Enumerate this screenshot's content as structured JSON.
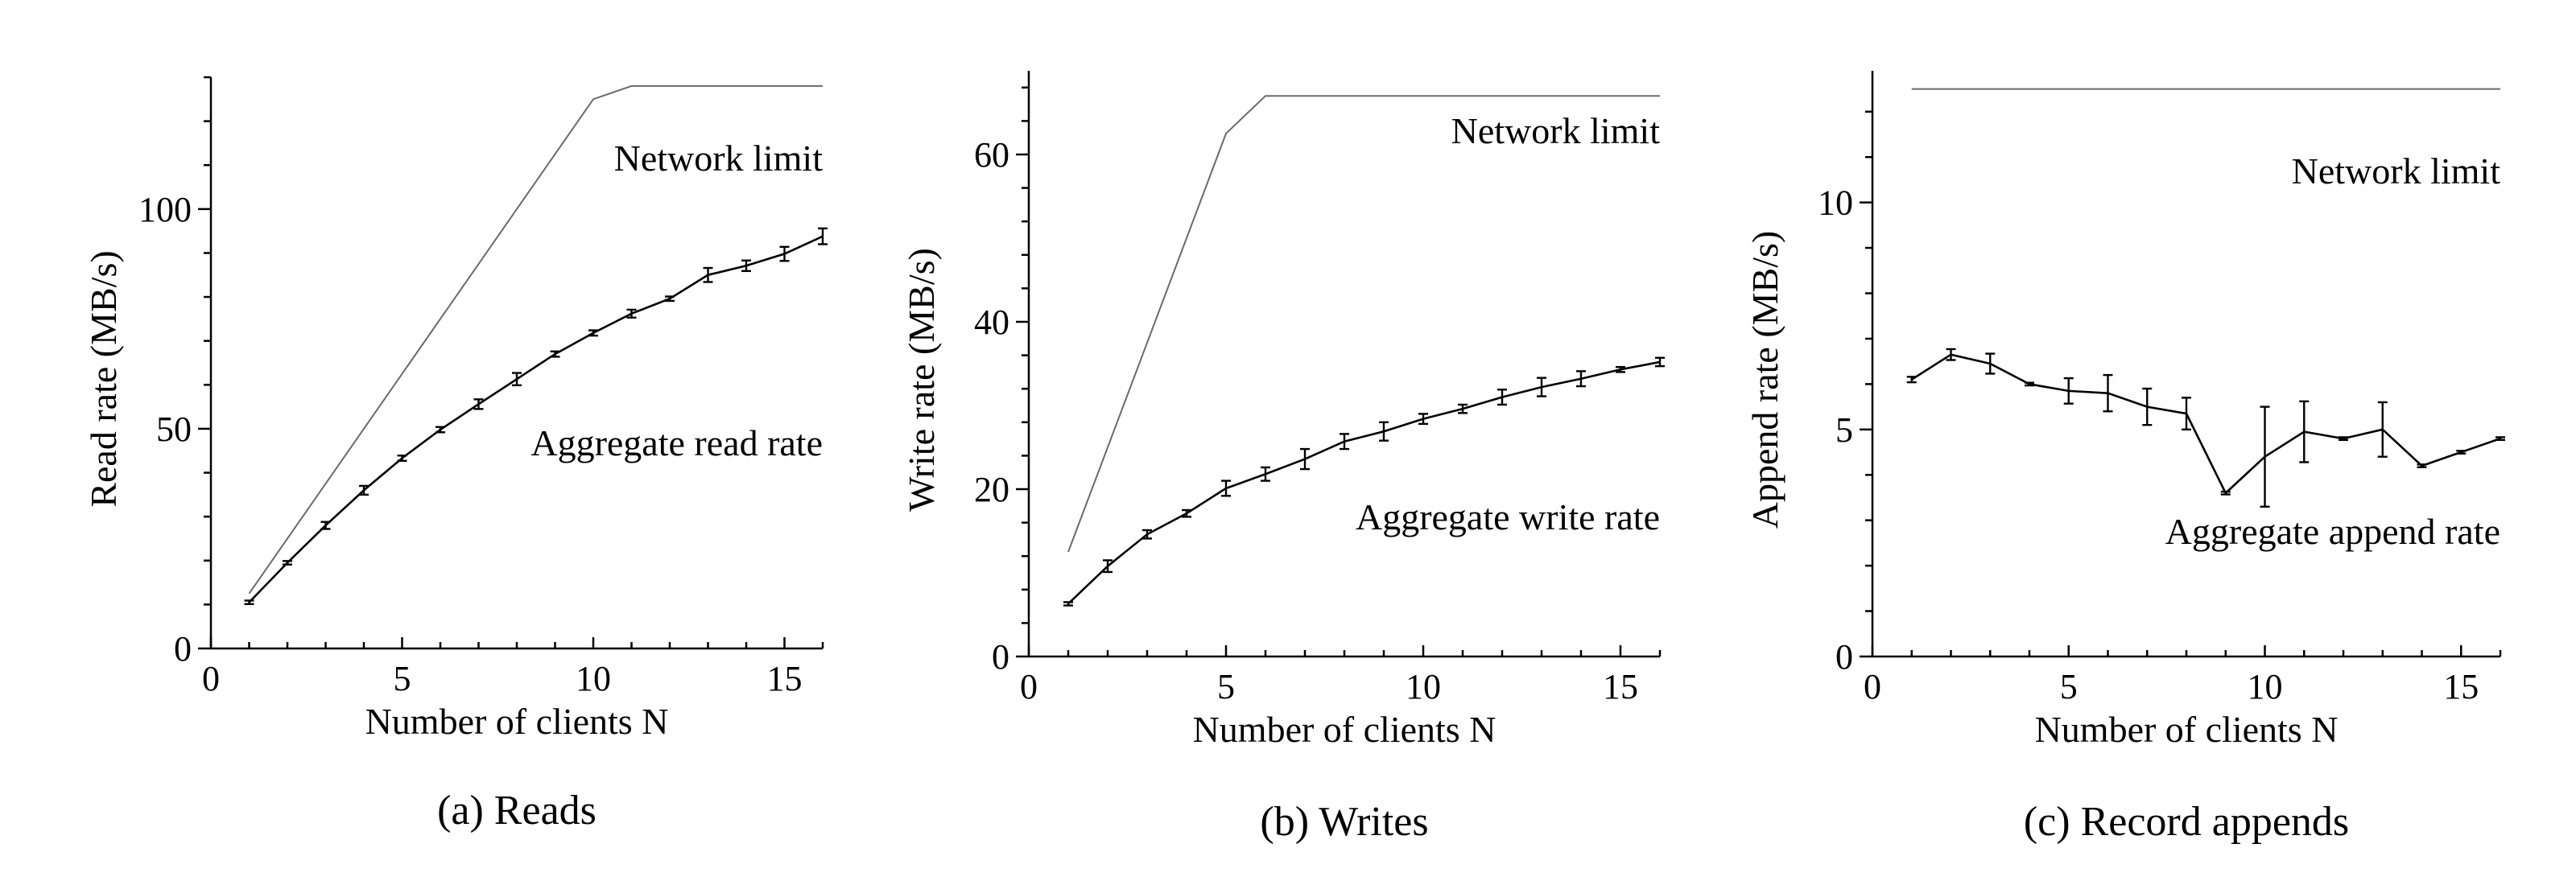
{
  "chart_data": [
    {
      "type": "line",
      "caption": "(a)  Reads",
      "xlabel": "Number of clients N",
      "ylabel": "Read rate (MB/s)",
      "xlim": [
        0,
        16
      ],
      "ylim": [
        0,
        130
      ],
      "xticks": [
        0,
        5,
        10,
        15
      ],
      "yticks": [
        0,
        50,
        100
      ],
      "series": [
        {
          "name": "Aggregate read rate",
          "role": "data",
          "x": [
            1,
            2,
            3,
            4,
            5,
            6,
            7,
            8,
            9,
            10,
            11,
            12,
            13,
            14,
            15,
            16
          ],
          "y": [
            10.5,
            19.5,
            28,
            36,
            43.3,
            49.8,
            55.6,
            61.3,
            67,
            71.8,
            76.2,
            79.6,
            85,
            87.1,
            89.8,
            93.8
          ],
          "err": [
            0.4,
            0.4,
            0.8,
            1,
            0.6,
            0.6,
            1.1,
            1.4,
            0.6,
            0.6,
            0.9,
            0.5,
            1.6,
            1.2,
            1.6,
            1.8
          ]
        },
        {
          "name": "Network limit",
          "role": "limit",
          "x": [
            1,
            10,
            11,
            16
          ],
          "y": [
            12.5,
            125,
            128,
            128
          ]
        }
      ]
    },
    {
      "type": "line",
      "caption": "(b)  Writes",
      "xlabel": "Number of clients N",
      "ylabel": "Write rate (MB/s)",
      "xlim": [
        0,
        16
      ],
      "ylim": [
        0,
        70
      ],
      "xticks": [
        0,
        5,
        10,
        15
      ],
      "yticks": [
        0,
        20,
        40,
        60
      ],
      "series": [
        {
          "name": "Aggregate write rate",
          "role": "data",
          "x": [
            1,
            2,
            3,
            4,
            5,
            6,
            7,
            8,
            9,
            10,
            11,
            12,
            13,
            14,
            15,
            16
          ],
          "y": [
            6.3,
            10.8,
            14.6,
            17.1,
            20.1,
            21.8,
            23.6,
            25.7,
            26.9,
            28.4,
            29.6,
            31,
            32.2,
            33.2,
            34.3,
            35.2
          ],
          "err": [
            0.2,
            0.7,
            0.5,
            0.4,
            0.9,
            0.8,
            1.2,
            0.9,
            1.1,
            0.6,
            0.5,
            0.9,
            1.1,
            0.9,
            0.3,
            0.5
          ]
        },
        {
          "name": "Network limit",
          "role": "limit",
          "x": [
            1,
            5,
            6,
            16
          ],
          "y": [
            12.5,
            62.5,
            67,
            67
          ]
        }
      ]
    },
    {
      "type": "line",
      "caption": "(c)  Record appends",
      "xlabel": "Number of clients N",
      "ylabel": "Append rate (MB/s)",
      "xlim": [
        0,
        16
      ],
      "ylim": [
        0,
        12.9
      ],
      "xticks": [
        0,
        5,
        10,
        15
      ],
      "yticks": [
        0,
        5,
        10
      ],
      "series": [
        {
          "name": "Aggregate append rate",
          "role": "data",
          "x": [
            1,
            2,
            3,
            4,
            5,
            6,
            7,
            8,
            9,
            10,
            11,
            12,
            13,
            14,
            15,
            16
          ],
          "y": [
            6.1,
            6.65,
            6.45,
            6.0,
            5.85,
            5.8,
            5.5,
            5.35,
            3.6,
            4.4,
            4.95,
            4.8,
            5.0,
            4.2,
            4.5,
            4.8
          ],
          "err": [
            0.06,
            0.12,
            0.22,
            0.03,
            0.28,
            0.4,
            0.4,
            0.35,
            0.03,
            1.1,
            0.67,
            0.03,
            0.6,
            0.03,
            0.03,
            0.03
          ]
        },
        {
          "name": "Network limit",
          "role": "limit",
          "x": [
            1,
            16
          ],
          "y": [
            12.5,
            12.5
          ]
        }
      ]
    }
  ]
}
